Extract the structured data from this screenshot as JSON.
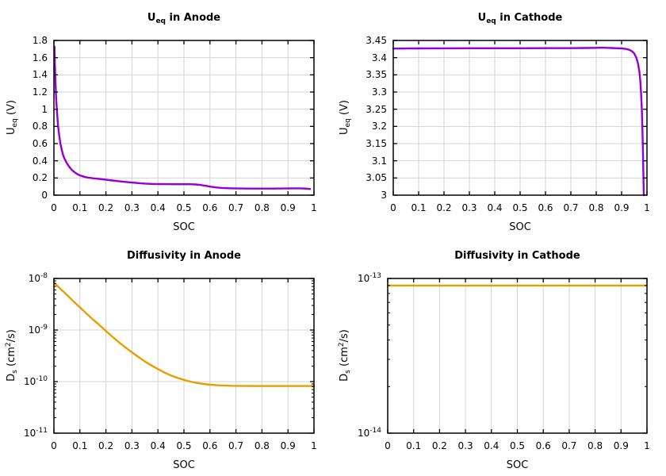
{
  "figure": {
    "background": "#ffffff",
    "grid_color": "#d4d4d4",
    "border_color": "#000000",
    "purple": "#9400d3",
    "orange": "#e69f00"
  },
  "chart_data": [
    {
      "name": "ueq-anode",
      "type": "line",
      "title_parts": [
        {
          "t": "U"
        },
        {
          "sub": "eq"
        },
        {
          "t": " in Anode"
        }
      ],
      "xlabel": "SOC",
      "ylabel_parts": [
        {
          "t": "U"
        },
        {
          "sub": "eq"
        },
        {
          "t": " (V)"
        }
      ],
      "line_color": "#9400d3",
      "grid": true,
      "legend": "none",
      "x": {
        "lim": [
          0,
          1
        ],
        "ticks": [
          0,
          0.1,
          0.2,
          0.3,
          0.4,
          0.5,
          0.6,
          0.7,
          0.8,
          0.9,
          1
        ],
        "labels": [
          "0",
          "0.1",
          "0.2",
          "0.3",
          "0.4",
          "0.5",
          "0.6",
          "0.7",
          "0.8",
          "0.9",
          "1"
        ]
      },
      "y": {
        "scale": "linear",
        "lim": [
          0,
          1.8
        ],
        "ticks": [
          0,
          0.2,
          0.4,
          0.6,
          0.8,
          1,
          1.2,
          1.4,
          1.6,
          1.8
        ],
        "labels": [
          "0",
          "0.2",
          "0.4",
          "0.6",
          "0.8",
          "1",
          "1.2",
          "1.4",
          "1.6",
          "1.8"
        ]
      },
      "points": [
        [
          0.002,
          1.73
        ],
        [
          0.004,
          1.5
        ],
        [
          0.006,
          1.32
        ],
        [
          0.008,
          1.17
        ],
        [
          0.01,
          1.05
        ],
        [
          0.013,
          0.92
        ],
        [
          0.016,
          0.81
        ],
        [
          0.02,
          0.7
        ],
        [
          0.025,
          0.6
        ],
        [
          0.03,
          0.53
        ],
        [
          0.035,
          0.47
        ],
        [
          0.04,
          0.43
        ],
        [
          0.05,
          0.37
        ],
        [
          0.06,
          0.325
        ],
        [
          0.07,
          0.29
        ],
        [
          0.08,
          0.265
        ],
        [
          0.09,
          0.245
        ],
        [
          0.1,
          0.23
        ],
        [
          0.115,
          0.215
        ],
        [
          0.13,
          0.205
        ],
        [
          0.15,
          0.197
        ],
        [
          0.175,
          0.188
        ],
        [
          0.2,
          0.18
        ],
        [
          0.225,
          0.171
        ],
        [
          0.25,
          0.162
        ],
        [
          0.275,
          0.154
        ],
        [
          0.3,
          0.147
        ],
        [
          0.325,
          0.14
        ],
        [
          0.35,
          0.135
        ],
        [
          0.375,
          0.131
        ],
        [
          0.4,
          0.129
        ],
        [
          0.43,
          0.128
        ],
        [
          0.46,
          0.127
        ],
        [
          0.49,
          0.127
        ],
        [
          0.52,
          0.127
        ],
        [
          0.545,
          0.125
        ],
        [
          0.565,
          0.118
        ],
        [
          0.585,
          0.108
        ],
        [
          0.605,
          0.098
        ],
        [
          0.625,
          0.09
        ],
        [
          0.645,
          0.084
        ],
        [
          0.665,
          0.081
        ],
        [
          0.69,
          0.079
        ],
        [
          0.72,
          0.078
        ],
        [
          0.76,
          0.077
        ],
        [
          0.8,
          0.077
        ],
        [
          0.84,
          0.077
        ],
        [
          0.88,
          0.078
        ],
        [
          0.92,
          0.079
        ],
        [
          0.95,
          0.079
        ],
        [
          0.965,
          0.077
        ],
        [
          0.985,
          0.072
        ]
      ]
    },
    {
      "name": "ueq-cathode",
      "type": "line",
      "title_parts": [
        {
          "t": "U"
        },
        {
          "sub": "eq"
        },
        {
          "t": " in Cathode"
        }
      ],
      "xlabel": "SOC",
      "ylabel_parts": [
        {
          "t": "U"
        },
        {
          "sub": "eq"
        },
        {
          "t": " (V)"
        }
      ],
      "line_color": "#9400d3",
      "grid": true,
      "legend": "none",
      "x": {
        "lim": [
          0,
          1
        ],
        "ticks": [
          0,
          0.1,
          0.2,
          0.3,
          0.4,
          0.5,
          0.6,
          0.7,
          0.8,
          0.9,
          1
        ],
        "labels": [
          "0",
          "0.1",
          "0.2",
          "0.3",
          "0.4",
          "0.5",
          "0.6",
          "0.7",
          "0.8",
          "0.9",
          "1"
        ]
      },
      "y": {
        "scale": "linear",
        "lim": [
          3,
          3.45
        ],
        "ticks": [
          3,
          3.05,
          3.1,
          3.15,
          3.2,
          3.25,
          3.3,
          3.35,
          3.4,
          3.45
        ],
        "labels": [
          "3",
          "3.05",
          "3.1",
          "3.15",
          "3.2",
          "3.25",
          "3.3",
          "3.35",
          "3.4",
          "3.45"
        ]
      },
      "points": [
        [
          0,
          3.4265
        ],
        [
          0.05,
          3.4268
        ],
        [
          0.1,
          3.427
        ],
        [
          0.2,
          3.4272
        ],
        [
          0.3,
          3.4273
        ],
        [
          0.4,
          3.4274
        ],
        [
          0.5,
          3.4275
        ],
        [
          0.6,
          3.4276
        ],
        [
          0.7,
          3.4277
        ],
        [
          0.75,
          3.428
        ],
        [
          0.8,
          3.4286
        ],
        [
          0.82,
          3.429
        ],
        [
          0.84,
          3.4285
        ],
        [
          0.86,
          3.428
        ],
        [
          0.88,
          3.4275
        ],
        [
          0.9,
          3.427
        ],
        [
          0.915,
          3.4255
        ],
        [
          0.93,
          3.423
        ],
        [
          0.94,
          3.419
        ],
        [
          0.95,
          3.412
        ],
        [
          0.958,
          3.4
        ],
        [
          0.965,
          3.382
        ],
        [
          0.97,
          3.36
        ],
        [
          0.974,
          3.33
        ],
        [
          0.977,
          3.295
        ],
        [
          0.98,
          3.245
        ],
        [
          0.982,
          3.195
        ],
        [
          0.984,
          3.13
        ],
        [
          0.986,
          3.06
        ],
        [
          0.9875,
          3.0
        ]
      ]
    },
    {
      "name": "diffusivity-anode",
      "type": "line",
      "title_parts": [
        {
          "t": "Diffusivity in Anode"
        }
      ],
      "xlabel": "SOC",
      "ylabel_parts": [
        {
          "t": "D"
        },
        {
          "sub": "s"
        },
        {
          "t": " (cm"
        },
        {
          "sup": "2"
        },
        {
          "t": "/s)"
        }
      ],
      "line_color": "#e69f00",
      "grid": true,
      "legend": "none",
      "x": {
        "lim": [
          0,
          1
        ],
        "ticks": [
          0,
          0.1,
          0.2,
          0.3,
          0.4,
          0.5,
          0.6,
          0.7,
          0.8,
          0.9,
          1
        ],
        "labels": [
          "0",
          "0.1",
          "0.2",
          "0.3",
          "0.4",
          "0.5",
          "0.6",
          "0.7",
          "0.8",
          "0.9",
          "1"
        ]
      },
      "y": {
        "scale": "log",
        "exp_lim": [
          -11,
          -8
        ],
        "tick_exps": [
          -11,
          -10,
          -9,
          -8
        ]
      },
      "points": [
        [
          0,
          8.3e-09
        ],
        [
          0.025,
          6.3e-09
        ],
        [
          0.05,
          4.8e-09
        ],
        [
          0.075,
          3.6e-09
        ],
        [
          0.1,
          2.75e-09
        ],
        [
          0.125,
          2.1e-09
        ],
        [
          0.15,
          1.6e-09
        ],
        [
          0.175,
          1.25e-09
        ],
        [
          0.2,
          9.6e-10
        ],
        [
          0.225,
          7.4e-10
        ],
        [
          0.25,
          5.8e-10
        ],
        [
          0.275,
          4.6e-10
        ],
        [
          0.3,
          3.7e-10
        ],
        [
          0.325,
          3e-10
        ],
        [
          0.35,
          2.45e-10
        ],
        [
          0.375,
          2.05e-10
        ],
        [
          0.4,
          1.75e-10
        ],
        [
          0.425,
          1.5e-10
        ],
        [
          0.45,
          1.32e-10
        ],
        [
          0.475,
          1.18e-10
        ],
        [
          0.5,
          1.08e-10
        ],
        [
          0.525,
          1e-10
        ],
        [
          0.55,
          9.4e-11
        ],
        [
          0.575,
          9e-11
        ],
        [
          0.6,
          8.7e-11
        ],
        [
          0.64,
          8.45e-11
        ],
        [
          0.68,
          8.3e-11
        ],
        [
          0.72,
          8.25e-11
        ],
        [
          0.78,
          8.2e-11
        ],
        [
          0.85,
          8.2e-11
        ],
        [
          0.92,
          8.2e-11
        ],
        [
          1,
          8.2e-11
        ]
      ]
    },
    {
      "name": "diffusivity-cathode",
      "type": "line",
      "title_parts": [
        {
          "t": "Diffusivity in Cathode"
        }
      ],
      "xlabel": "SOC",
      "ylabel_parts": [
        {
          "t": "D"
        },
        {
          "sub": "s"
        },
        {
          "t": " (cm"
        },
        {
          "sup": "2"
        },
        {
          "t": "/s)"
        }
      ],
      "line_color": "#e69f00",
      "grid": true,
      "legend": "none",
      "x": {
        "lim": [
          0,
          1
        ],
        "ticks": [
          0,
          0.1,
          0.2,
          0.3,
          0.4,
          0.5,
          0.6,
          0.7,
          0.8,
          0.9,
          1
        ],
        "labels": [
          "0",
          "0.1",
          "0.2",
          "0.3",
          "0.4",
          "0.5",
          "0.6",
          "0.7",
          "0.8",
          "0.9",
          "1"
        ]
      },
      "y": {
        "scale": "log",
        "exp_lim": [
          -14,
          -13
        ],
        "tick_exps": [
          -14,
          -13
        ]
      },
      "points": [
        [
          0,
          9e-14
        ],
        [
          1,
          9e-14
        ]
      ]
    }
  ]
}
